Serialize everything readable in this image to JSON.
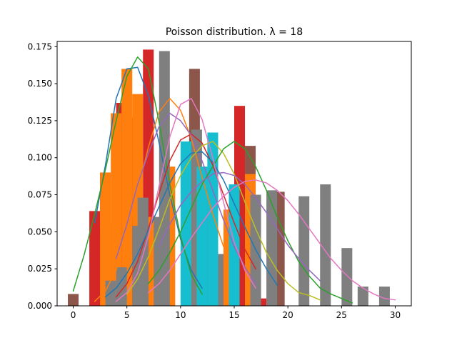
{
  "chart_data": {
    "type": "bar",
    "title": "Poisson distribution. λ = 18",
    "xlabel": "",
    "ylabel": "",
    "xlim": [
      -1.5,
      31.5
    ],
    "ylim": [
      0,
      0.1785
    ],
    "x_ticks": [
      0,
      5,
      10,
      15,
      20,
      25,
      30
    ],
    "x_tick_labels": [
      "0",
      "5",
      "10",
      "15",
      "20",
      "25",
      "30"
    ],
    "y_ticks": [
      0,
      0.025,
      0.05,
      0.075,
      0.1,
      0.125,
      0.15,
      0.175
    ],
    "y_tick_labels": [
      "0.000",
      "0.025",
      "0.050",
      "0.075",
      "0.100",
      "0.125",
      "0.150",
      "0.175"
    ],
    "grid": false,
    "legend": "none",
    "bar_series": [
      {
        "color": "#8c564b",
        "bars": [
          [
            0,
            0.008
          ],
          [
            2.3,
            0.05
          ],
          [
            4,
            0.056
          ],
          [
            5.5,
            0.013
          ],
          [
            7,
            0.021
          ],
          [
            11.3,
            0.16
          ],
          [
            12.7,
            0.061
          ],
          [
            14.3,
            0.027
          ],
          [
            16.5,
            0.108
          ],
          [
            19.2,
            0.077
          ]
        ]
      },
      {
        "color": "#d62728",
        "bars": [
          [
            2,
            0.064
          ],
          [
            3,
            0.09
          ],
          [
            4.5,
            0.137
          ],
          [
            5.5,
            0.127
          ],
          [
            7,
            0.173
          ],
          [
            8.5,
            0.017
          ],
          [
            12.5,
            0.09
          ],
          [
            15.5,
            0.135
          ],
          [
            17.5,
            0.005
          ]
        ]
      },
      {
        "color": "#ff7f0e",
        "bars": [
          [
            3,
            0.09
          ],
          [
            4,
            0.13
          ],
          [
            5,
            0.16
          ],
          [
            6,
            0.143
          ],
          [
            7.5,
            0.06
          ],
          [
            9,
            0.094
          ],
          [
            11,
            0.076
          ],
          [
            11.5,
            0.044
          ],
          [
            13,
            0.112
          ],
          [
            14.5,
            0.065
          ],
          [
            16.5,
            0.089
          ]
        ]
      },
      {
        "color": "#7f7f7f",
        "bars": [
          [
            3.5,
            0.017
          ],
          [
            4.5,
            0.026
          ],
          [
            6,
            0.054
          ],
          [
            6.5,
            0.073
          ],
          [
            8,
            0.06
          ],
          [
            8.5,
            0.172
          ],
          [
            11.5,
            0.119
          ],
          [
            13.5,
            0.035
          ],
          [
            17,
            0.075
          ],
          [
            18.5,
            0.078
          ],
          [
            21.5,
            0.074
          ],
          [
            23.5,
            0.082
          ],
          [
            25.5,
            0.039
          ],
          [
            27,
            0.013
          ],
          [
            29,
            0.013
          ]
        ]
      },
      {
        "color": "#17becf",
        "bars": [
          [
            10.5,
            0.111
          ],
          [
            12,
            0.094
          ],
          [
            13,
            0.117
          ],
          [
            15,
            0.082
          ]
        ]
      }
    ],
    "series": [
      {
        "color": "#1f77b4",
        "x": [
          2,
          3,
          4,
          5,
          6,
          7,
          8,
          9,
          10,
          11,
          12
        ],
        "y": [
          0.056,
          0.095,
          0.14,
          0.16,
          0.161,
          0.142,
          0.11,
          0.075,
          0.045,
          0.024,
          0.012
        ]
      },
      {
        "color": "#ff7f0e",
        "x": [
          2,
          3,
          4,
          5,
          6,
          7,
          8,
          9,
          10,
          11,
          12,
          13,
          14
        ],
        "y": [
          0.003,
          0.01,
          0.024,
          0.047,
          0.077,
          0.107,
          0.131,
          0.14,
          0.132,
          0.113,
          0.087,
          0.062,
          0.04
        ]
      },
      {
        "color": "#2ca02c",
        "x": [
          0,
          1,
          2,
          3,
          4,
          5,
          6,
          7,
          8,
          9,
          10,
          11,
          12
        ],
        "y": [
          0.01,
          0.034,
          0.062,
          0.092,
          0.125,
          0.155,
          0.168,
          0.16,
          0.124,
          0.082,
          0.047,
          0.021,
          0.008
        ]
      },
      {
        "color": "#d62728",
        "x": [
          4,
          5,
          6,
          7,
          8,
          9,
          10,
          11,
          12,
          13,
          14,
          15,
          16,
          17
        ],
        "y": [
          0.006,
          0.015,
          0.03,
          0.052,
          0.076,
          0.098,
          0.112,
          0.116,
          0.11,
          0.095,
          0.075,
          0.056,
          0.038,
          0.025
        ]
      },
      {
        "color": "#9467bd",
        "x": [
          4,
          5,
          6,
          7,
          8,
          9,
          10,
          11,
          12,
          13,
          14,
          15,
          16,
          17
        ],
        "y": [
          0.032,
          0.055,
          0.082,
          0.103,
          0.121,
          0.13,
          0.125,
          0.115,
          0.098,
          0.078,
          0.058,
          0.04,
          0.026,
          0.015
        ]
      },
      {
        "color": "#1f77b4",
        "x": [
          3,
          4,
          5,
          6,
          7,
          8,
          9,
          10,
          11,
          12,
          13,
          14,
          15,
          16,
          17,
          18,
          19
        ],
        "y": [
          0.006,
          0.012,
          0.022,
          0.035,
          0.051,
          0.067,
          0.083,
          0.096,
          0.103,
          0.104,
          0.097,
          0.085,
          0.069,
          0.053,
          0.038,
          0.025,
          0.014
        ]
      },
      {
        "color": "#bcbd22",
        "x": [
          5,
          6,
          7,
          8,
          9,
          10,
          11,
          12,
          13,
          14,
          15,
          16,
          17,
          18,
          19,
          20,
          21,
          22,
          23
        ],
        "y": [
          0.008,
          0.018,
          0.033,
          0.052,
          0.072,
          0.088,
          0.1,
          0.108,
          0.111,
          0.103,
          0.089,
          0.07,
          0.052,
          0.036,
          0.024,
          0.015,
          0.009,
          0.007,
          0.004
        ]
      },
      {
        "color": "#2ca02c",
        "x": [
          7,
          8,
          9,
          10,
          11,
          12,
          13,
          14,
          15,
          16,
          17,
          18,
          19,
          20,
          21,
          22,
          23,
          24,
          25,
          26
        ],
        "y": [
          0.015,
          0.024,
          0.036,
          0.05,
          0.066,
          0.082,
          0.094,
          0.106,
          0.111,
          0.106,
          0.094,
          0.078,
          0.06,
          0.044,
          0.03,
          0.02,
          0.012,
          0.008,
          0.005,
          0.002
        ]
      },
      {
        "color": "#9467bd",
        "x": [
          8,
          9,
          10,
          11,
          12,
          13,
          14,
          15,
          16,
          17,
          18,
          19,
          20,
          21,
          22,
          23
        ],
        "y": [
          0.04,
          0.055,
          0.068,
          0.077,
          0.084,
          0.089,
          0.09,
          0.088,
          0.082,
          0.073,
          0.063,
          0.052,
          0.041,
          0.032,
          0.024,
          0.017
        ]
      },
      {
        "color": "#e377c2",
        "x": [
          7,
          8,
          9,
          10,
          11,
          12,
          13,
          14,
          15,
          16,
          17,
          18,
          19,
          20,
          21,
          22,
          23,
          24,
          25,
          26,
          27,
          28,
          29,
          30
        ],
        "y": [
          0.009,
          0.015,
          0.024,
          0.035,
          0.046,
          0.056,
          0.066,
          0.074,
          0.08,
          0.084,
          0.085,
          0.083,
          0.078,
          0.071,
          0.062,
          0.052,
          0.042,
          0.032,
          0.024,
          0.017,
          0.012,
          0.008,
          0.005,
          0.004
        ]
      },
      {
        "color": "#e377c2",
        "x": [
          4,
          5,
          6,
          7,
          8,
          9,
          10,
          11,
          12,
          13,
          14,
          15,
          16,
          17
        ],
        "y": [
          0.003,
          0.009,
          0.022,
          0.047,
          0.081,
          0.114,
          0.136,
          0.14,
          0.126,
          0.1,
          0.07,
          0.043,
          0.024,
          0.012
        ]
      }
    ]
  }
}
